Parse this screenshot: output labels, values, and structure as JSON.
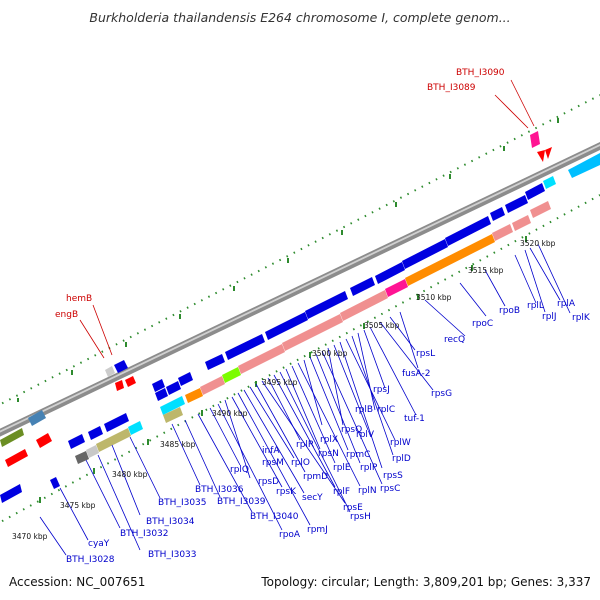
{
  "title": "Burkholderia thailandensis E264 chromosome I, complete genom...",
  "footer": {
    "accession": "Accession: NC_007651",
    "summary": "Topology: circular; Length: 3,809,201 bp; Genes: 3,337"
  },
  "colors": {
    "backbone": "#8c8c8c",
    "tick_dots": "#2e8b2e",
    "gene_blue": "#0000e0",
    "gene_pink": "#f09090",
    "gene_orange": "#ff8c00",
    "gene_olive": "#bdb76b",
    "gene_cyan": "#00e0ff",
    "gene_magenta": "#ff1493",
    "gene_red": "#ff0000",
    "gene_gray": "#a0a0a0",
    "label_blue": "#0000cc",
    "label_red": "#cc0000"
  },
  "kbp_ticks": [
    "3470 kbp",
    "3475 kbp",
    "3480 kbp",
    "3485 kbp",
    "3490 kbp",
    "3495 kbp",
    "3500 kbp",
    "3505 kbp",
    "3510 kbp",
    "3515 kbp",
    "3520 kbp"
  ],
  "gene_labels": [
    "BTH_I3028",
    "cyaY",
    "BTH_I3032",
    "BTH_I3033",
    "BTH_I3034",
    "BTH_I3035",
    "BTH_I3036",
    "BTH_I3039",
    "BTH_I3040",
    "rplQ",
    "rpoA",
    "rpsD",
    "rpsK",
    "rpmJ",
    "secY",
    "rplO",
    "rpmD",
    "rpsE",
    "rplR",
    "rplF",
    "rpsH",
    "rpsN",
    "rplE",
    "rplX",
    "rplN",
    "rpsQ",
    "rpmC",
    "rplP",
    "rpsC",
    "rplV",
    "rpsS",
    "rplB",
    "rplW",
    "rplD",
    "rplC",
    "rpsJ",
    "tuf-1",
    "rpsG",
    "rpsL",
    "fusA-2",
    "recQ",
    "rpoC",
    "rpoB",
    "rplL",
    "rplJ",
    "rplA",
    "rplK",
    "infA",
    "rpsM"
  ],
  "special_labels": [
    "hemB",
    "engB",
    "BTH_I3090",
    "BTH_I3089"
  ]
}
